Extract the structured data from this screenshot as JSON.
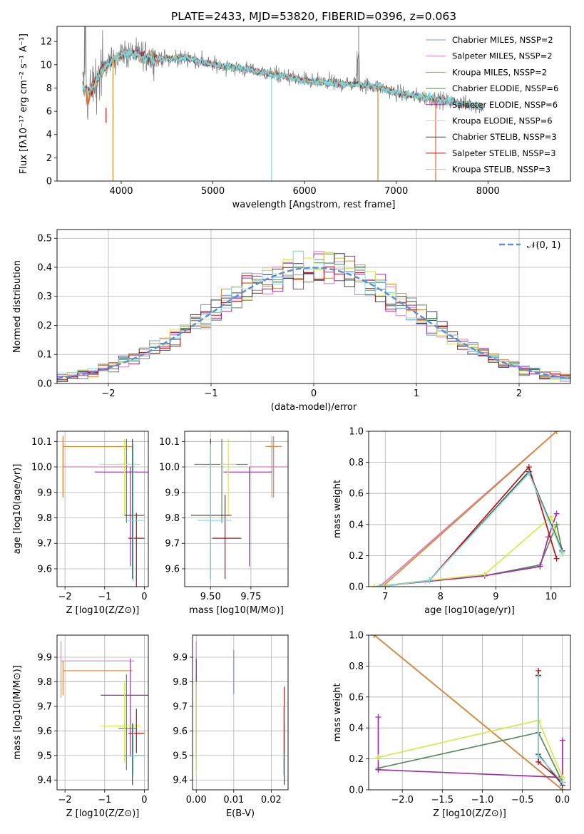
{
  "title": "PLATE=2433, MJD=53820, FIBERID=0396, z=0.063",
  "colors": {
    "chabrier_miles": "#6f95d9",
    "salpeter_miles": "#df7fbf",
    "kroupa_miles": "#d68a2e",
    "chabrier_elodie": "#5e8a5e",
    "salpeter_elodie": "#9b2fa8",
    "kroupa_elodie": "#d6e84a",
    "chabrier_stelib": "#3d3d3d",
    "salpeter_stelib": "#b81313",
    "kroupa_stelib": "#80dbe0",
    "data": "#7f7f7f",
    "accent": "#e86e2c",
    "gaussian": "#5b8fd9",
    "grid": "#b0b0b0"
  },
  "chart_data": [
    {
      "id": "spectrum",
      "type": "line",
      "xlabel": "wavelength [Angstrom, rest frame]",
      "ylabel": "Flux [fλ10⁻¹⁷ erg cm⁻² s⁻¹ A⁻¹]",
      "xlim": [
        3300,
        8900
      ],
      "ylim": [
        0,
        13.3
      ],
      "xticks": [
        4000,
        5000,
        6000,
        7000,
        8000
      ],
      "yticks": [
        0,
        2,
        4,
        6,
        8,
        10,
        12
      ],
      "grid": false,
      "legend_position": "top-right",
      "legend": [
        "Chabrier MILES, NSSP=2",
        "Salpeter MILES, NSSP=2",
        "Kroupa MILES, NSSP=2",
        "Chabrier ELODIE, NSSP=6",
        "Salpeter ELODIE, NSSP=6",
        "Kroupa ELODIE, NSSP=6",
        "Chabrier STELIB, NSSP=3",
        "Salpeter STELIB, NSSP=3",
        "Kroupa STELIB, NSSP=3"
      ],
      "continuum": {
        "x": [
          3580,
          3650,
          3700,
          3750,
          3800,
          3850,
          3900,
          3950,
          4000,
          4100,
          4200,
          4300,
          4500,
          4700,
          5000,
          5200,
          5500,
          5800,
          6000,
          6300,
          6600,
          6800,
          7000,
          7200,
          7400,
          7600,
          7800,
          7950
        ],
        "y": [
          8.0,
          7.6,
          8.2,
          9.0,
          9.6,
          10.0,
          10.3,
          10.6,
          10.9,
          11.0,
          10.8,
          10.6,
          10.5,
          10.6,
          10.0,
          9.8,
          9.4,
          9.0,
          8.6,
          8.4,
          8.3,
          8.1,
          7.6,
          7.3,
          7.1,
          6.8,
          6.6,
          6.4
        ]
      }
    },
    {
      "id": "residuals",
      "type": "line",
      "xlabel": "(data-model)/error",
      "ylabel": "Normed distribution",
      "xlim": [
        -2.5,
        2.5
      ],
      "ylim": [
        0,
        0.53
      ],
      "xticks": [
        -2,
        -1,
        0,
        1,
        2
      ],
      "yticks": [
        0.0,
        0.1,
        0.2,
        0.3,
        0.4,
        0.5
      ],
      "grid": true,
      "legend_position": "top-right",
      "legend": [
        "𝒩(0, 1)"
      ],
      "gaussian": {
        "mean": 0,
        "sigma": 1
      }
    },
    {
      "id": "age-vs-z",
      "type": "scatter",
      "xlabel": "Z [log10(Z/Z⊙)]",
      "ylabel": "age  [log10(age/yr)]",
      "xlim": [
        -2.2,
        0.1
      ],
      "ylim": [
        9.53,
        10.14
      ],
      "xticks": [
        -2,
        -1,
        0
      ],
      "yticks": [
        9.6,
        9.7,
        9.8,
        9.9,
        10.0,
        10.1
      ],
      "grid": true,
      "points": [
        {
          "model": "chabrier_miles",
          "x": -0.3,
          "xerr": [
            0,
            0
          ],
          "y": 9.8,
          "yerr": [
            0,
            0
          ]
        },
        {
          "model": "salpeter_miles",
          "x": -2.05,
          "xerr": [
            0,
            1.8
          ],
          "y": 10.0,
          "yerr": [
            0.12,
            0.12
          ]
        },
        {
          "model": "kroupa_miles",
          "x": -2.05,
          "xerr": [
            0,
            1.75
          ],
          "y": 10.08,
          "yerr": [
            0.2,
            0.04
          ]
        },
        {
          "model": "chabrier_elodie",
          "x": -0.45,
          "xerr": [
            0.2,
            0.25
          ],
          "y": 10.01,
          "yerr": [
            0.23,
            0.1
          ]
        },
        {
          "model": "salpeter_elodie",
          "x": -0.35,
          "xerr": [
            0.9,
            0.8
          ],
          "y": 9.98,
          "yerr": [
            0.37,
            0.02
          ]
        },
        {
          "model": "kroupa_elodie",
          "x": -0.5,
          "xerr": [
            0.65,
            0.4
          ],
          "y": 10.01,
          "yerr": [
            0.2,
            0.1
          ]
        },
        {
          "model": "chabrier_stelib",
          "x": -0.3,
          "xerr": [
            0.2,
            0.3
          ],
          "y": 9.81,
          "yerr": [
            0.25,
            0.3
          ]
        },
        {
          "model": "salpeter_stelib",
          "x": -0.2,
          "xerr": [
            0.2,
            0.2
          ],
          "y": 9.72,
          "yerr": [
            0.3,
            0.1
          ]
        },
        {
          "model": "kroupa_stelib",
          "x": -0.28,
          "xerr": [
            0.2,
            0.3
          ],
          "y": 9.79,
          "yerr": [
            0.24,
            0.3
          ]
        }
      ]
    },
    {
      "id": "age-vs-mass",
      "type": "scatter",
      "xlabel": "mass [log10(M/M⊙)]",
      "ylabel": "",
      "xlim": [
        9.34,
        9.98
      ],
      "ylim": [
        9.53,
        10.14
      ],
      "xticks": [
        9.5,
        9.75
      ],
      "xticklabels": [
        "9.50",
        "9.75"
      ],
      "yticks": [
        9.6,
        9.7,
        9.8,
        9.9,
        10.0,
        10.1
      ],
      "grid": true,
      "points": [
        {
          "model": "chabrier_miles",
          "x": 9.89,
          "xerr": [
            0.05,
            0.05
          ],
          "y": 10.08,
          "yerr": [
            0.2,
            0.04
          ]
        },
        {
          "model": "salpeter_miles",
          "x": 9.89,
          "xerr": [
            0.15,
            0.1
          ],
          "y": 10.0,
          "yerr": [
            0.12,
            0.12
          ]
        },
        {
          "model": "kroupa_miles",
          "x": 9.88,
          "xerr": [
            0.03,
            0.05
          ],
          "y": 10.08,
          "yerr": [
            0.2,
            0.04
          ]
        },
        {
          "model": "chabrier_elodie",
          "x": 9.57,
          "xerr": [
            0.17,
            0.16
          ],
          "y": 10.01,
          "yerr": [
            0.23,
            0.1
          ]
        },
        {
          "model": "salpeter_elodie",
          "x": 9.74,
          "xerr": [
            0.16,
            0.14
          ],
          "y": 9.98,
          "yerr": [
            0.37,
            0.02
          ]
        },
        {
          "model": "kroupa_elodie",
          "x": 9.61,
          "xerr": [
            0.05,
            0.05
          ],
          "y": 10.01,
          "yerr": [
            0.2,
            0.1
          ]
        },
        {
          "model": "chabrier_stelib",
          "x": 9.5,
          "xerr": [
            0.12,
            0.13
          ],
          "y": 9.81,
          "yerr": [
            0.25,
            0.3
          ]
        },
        {
          "model": "salpeter_stelib",
          "x": 9.59,
          "xerr": [
            0.08,
            0.1
          ],
          "y": 9.72,
          "yerr": [
            0.16,
            0.17
          ]
        },
        {
          "model": "kroupa_stelib",
          "x": 9.5,
          "xerr": [
            0.08,
            0.13
          ],
          "y": 9.79,
          "yerr": [
            0.24,
            0.3
          ]
        }
      ]
    },
    {
      "id": "mass-weight-vs-age",
      "type": "line",
      "xlabel": "age  [log10(age/yr)]",
      "ylabel": "mass weight",
      "xlim": [
        6.7,
        10.35
      ],
      "ylim": [
        0,
        1.0
      ],
      "xticks": [
        7,
        8,
        9,
        10
      ],
      "yticks": [
        0.0,
        0.2,
        0.4,
        0.6,
        0.8,
        1.0
      ],
      "grid": true,
      "series": [
        {
          "model": "chabrier_miles",
          "x": [
            6.9,
            10.1
          ],
          "y": [
            0.0,
            1.0
          ]
        },
        {
          "model": "salpeter_miles",
          "x": [
            6.9,
            10.1
          ],
          "y": [
            0.0,
            1.0
          ]
        },
        {
          "model": "kroupa_miles",
          "x": [
            6.95,
            10.1
          ],
          "y": [
            0.0,
            1.0
          ]
        },
        {
          "model": "chabrier_elodie",
          "x": [
            6.8,
            8.8,
            9.8,
            10.1,
            10.2
          ],
          "y": [
            0.0,
            0.07,
            0.14,
            0.4,
            0.23
          ]
        },
        {
          "model": "salpeter_elodie",
          "x": [
            6.8,
            8.8,
            9.8,
            9.95,
            10.1
          ],
          "y": [
            0.0,
            0.07,
            0.13,
            0.32,
            0.47
          ]
        },
        {
          "model": "kroupa_elodie",
          "x": [
            6.8,
            8.8,
            10.0,
            10.2
          ],
          "y": [
            0.0,
            0.08,
            0.45,
            0.21
          ]
        },
        {
          "model": "chabrier_stelib",
          "x": [
            6.9,
            7.8,
            9.6,
            10.2
          ],
          "y": [
            0.0,
            0.04,
            0.74,
            0.23
          ]
        },
        {
          "model": "salpeter_stelib",
          "x": [
            6.9,
            7.8,
            9.6,
            10.1
          ],
          "y": [
            0.0,
            0.04,
            0.77,
            0.18
          ]
        },
        {
          "model": "kroupa_stelib",
          "x": [
            6.9,
            7.8,
            9.6,
            10.2
          ],
          "y": [
            0.0,
            0.04,
            0.73,
            0.22
          ]
        }
      ]
    },
    {
      "id": "mass-vs-z",
      "type": "scatter",
      "xlabel": "Z [log10(Z/Z⊙)]",
      "ylabel": "mass [log10(M/M⊙)]",
      "xlim": [
        -2.2,
        0.1
      ],
      "ylim": [
        9.36,
        9.99
      ],
      "xticks": [
        -2,
        -1,
        0
      ],
      "yticks": [
        9.4,
        9.5,
        9.6,
        9.7,
        9.8,
        9.9
      ],
      "grid": true,
      "points": [
        {
          "model": "chabrier_miles",
          "x": -0.3,
          "xerr": [
            0,
            0
          ],
          "y": 9.89,
          "yerr": [
            0,
            0
          ]
        },
        {
          "model": "salpeter_miles",
          "x": -2.1,
          "xerr": [
            0,
            1.85
          ],
          "y": 9.885,
          "yerr": [
            0.15,
            0.08
          ]
        },
        {
          "model": "kroupa_miles",
          "x": -2.05,
          "xerr": [
            0,
            1.75
          ],
          "y": 9.845,
          "yerr": [
            0.1,
            0.04
          ]
        },
        {
          "model": "chabrier_elodie",
          "x": -0.45,
          "xerr": [
            0.2,
            0.25
          ],
          "y": 9.61,
          "yerr": [
            0.17,
            0.22
          ]
        },
        {
          "model": "salpeter_elodie",
          "x": -0.35,
          "xerr": [
            0.75,
            0.45
          ],
          "y": 9.745,
          "yerr": [
            0.25,
            0.15
          ]
        },
        {
          "model": "kroupa_elodie",
          "x": -0.5,
          "xerr": [
            0.6,
            0.4
          ],
          "y": 9.62,
          "yerr": [
            0.15,
            0.18
          ]
        },
        {
          "model": "chabrier_stelib",
          "x": -0.3,
          "xerr": [
            0.2,
            0.3
          ],
          "y": 9.5,
          "yerr": [
            0.12,
            0.13
          ]
        },
        {
          "model": "salpeter_stelib",
          "x": -0.2,
          "xerr": [
            0.2,
            0.2
          ],
          "y": 9.59,
          "yerr": [
            0.08,
            0.1
          ]
        },
        {
          "model": "kroupa_stelib",
          "x": -0.28,
          "xerr": [
            0.2,
            0.3
          ],
          "y": 9.5,
          "yerr": [
            0.08,
            0.13
          ]
        }
      ]
    },
    {
      "id": "mass-vs-ebv",
      "type": "scatter",
      "xlabel": "E(B-V)",
      "ylabel": "",
      "xlim": [
        -0.001,
        0.0245
      ],
      "ylim": [
        9.36,
        9.99
      ],
      "xticks": [
        0.0,
        0.01,
        0.02
      ],
      "xticklabels": [
        "0.00",
        "0.01",
        "0.02"
      ],
      "yticks": [
        9.4,
        9.5,
        9.6,
        9.7,
        9.8,
        9.9
      ],
      "grid": true,
      "points": [
        {
          "model": "chabrier_miles",
          "x": 0.01,
          "xerr": [
            0,
            0
          ],
          "y": 9.84,
          "yerr": [
            0.09,
            0.09
          ]
        },
        {
          "model": "salpeter_miles",
          "x": 0.0,
          "xerr": [
            0,
            0
          ],
          "y": 9.885,
          "yerr": [
            0.15,
            0.08
          ]
        },
        {
          "model": "kroupa_miles",
          "x": 0.0,
          "xerr": [
            0,
            0
          ],
          "y": 9.845,
          "yerr": [
            0.1,
            0.04
          ]
        },
        {
          "model": "chabrier_elodie",
          "x": 0.0,
          "xerr": [
            0,
            0
          ],
          "y": 9.61,
          "yerr": [
            0.17,
            0.22
          ]
        },
        {
          "model": "salpeter_elodie",
          "x": 0.0,
          "xerr": [
            0,
            0
          ],
          "y": 9.745,
          "yerr": [
            0.25,
            0.15
          ]
        },
        {
          "model": "kroupa_elodie",
          "x": 0.0,
          "xerr": [
            0,
            0
          ],
          "y": 9.62,
          "yerr": [
            0.2,
            0.18
          ]
        },
        {
          "model": "chabrier_stelib",
          "x": 0.0235,
          "xerr": [
            0,
            0
          ],
          "y": 9.5,
          "yerr": [
            0.12,
            0.13
          ]
        },
        {
          "model": "salpeter_stelib",
          "x": 0.0235,
          "xerr": [
            0,
            0
          ],
          "y": 9.59,
          "yerr": [
            0.08,
            0.19
          ]
        },
        {
          "model": "kroupa_stelib",
          "x": 0.0233,
          "xerr": [
            0,
            0
          ],
          "y": 9.5,
          "yerr": [
            0.08,
            0.2
          ]
        }
      ]
    },
    {
      "id": "mass-weight-vs-z",
      "type": "line",
      "xlabel": "Z [log10(Z/Z⊙)]",
      "ylabel": "mass weight",
      "xlim": [
        -2.42,
        0.1
      ],
      "ylim": [
        0,
        1.0
      ],
      "xticks": [
        -2.0,
        -1.5,
        -1.0,
        -0.5,
        0.0
      ],
      "xticklabels": [
        "−2.0",
        "−1.5",
        "−1.0",
        "−0.5",
        "0.0"
      ],
      "yticks": [
        0.0,
        0.2,
        0.4,
        0.6,
        0.8,
        1.0
      ],
      "grid": true,
      "series": [
        {
          "model": "chabrier_miles",
          "x": [
            -2.35,
            0.0
          ],
          "y": [
            1.0,
            0.0
          ]
        },
        {
          "model": "salpeter_miles",
          "x": [
            -2.35,
            0.0
          ],
          "y": [
            1.0,
            0.0
          ]
        },
        {
          "model": "kroupa_miles",
          "x": [
            -2.35,
            0.0
          ],
          "y": [
            1.0,
            0.0
          ]
        },
        {
          "model": "chabrier_elodie",
          "x": [
            -2.3,
            -0.3,
            0.0
          ],
          "y": [
            0.14,
            0.37,
            0.05
          ]
        },
        {
          "model": "salpeter_elodie",
          "x": [
            -2.3,
            -2.3,
            -2.3,
            -0.0,
            0.0,
            0.0
          ],
          "y": [
            0.47,
            0.13,
            0.13,
            0.08,
            0.32,
            0.03
          ]
        },
        {
          "model": "kroupa_elodie",
          "x": [
            -2.3,
            -0.3,
            0.0
          ],
          "y": [
            0.21,
            0.45,
            0.08
          ]
        },
        {
          "model": "chabrier_stelib",
          "x": [
            -0.3,
            -0.3,
            0.0
          ],
          "y": [
            0.74,
            0.23,
            0.03
          ]
        },
        {
          "model": "salpeter_stelib",
          "x": [
            -0.3,
            -0.3,
            0.0
          ],
          "y": [
            0.77,
            0.18,
            0.05
          ]
        },
        {
          "model": "kroupa_stelib",
          "x": [
            -0.3,
            -0.3,
            0.0
          ],
          "y": [
            0.73,
            0.22,
            0.05
          ]
        }
      ]
    }
  ]
}
